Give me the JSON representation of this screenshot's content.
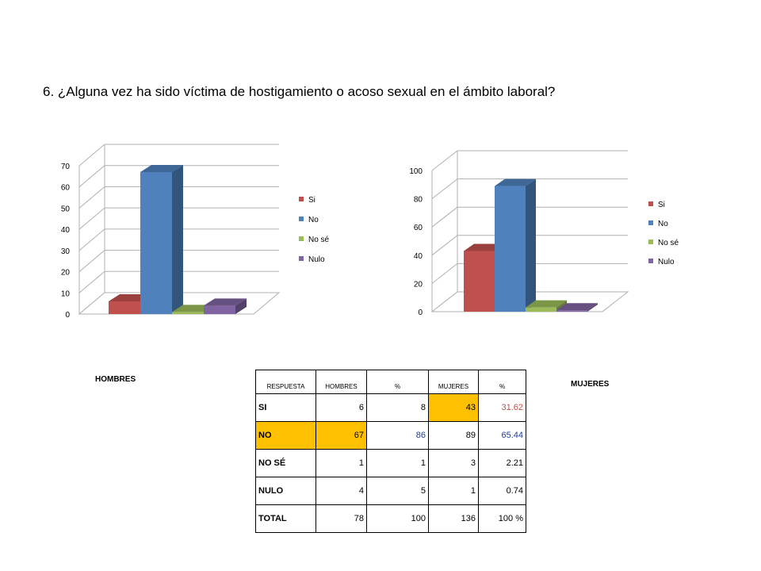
{
  "title": "6. ¿Alguna vez ha sido víctima de hostigamiento o acoso sexual en el  ámbito laboral?",
  "captions": {
    "hombres": "HOMBRES",
    "mujeres": "MUJERES"
  },
  "colors": {
    "si": "#c0504d",
    "no": "#4f81bd",
    "nose": "#9bbb59",
    "nulo": "#8064a2",
    "highlight": "#ffc000"
  },
  "chart_data": [
    {
      "type": "bar",
      "categories": [
        "Si",
        "No",
        "No sé",
        "Nulo"
      ],
      "values": [
        6,
        67,
        1,
        4
      ],
      "ylim": [
        0,
        70
      ],
      "yticks": [
        "0",
        "10",
        "20",
        "30",
        "40",
        "50",
        "60",
        "70"
      ],
      "legend": [
        "Si",
        "No",
        "No sé",
        "Nulo"
      ],
      "legend_position": "right",
      "grid": true,
      "style": "3d"
    },
    {
      "type": "bar",
      "categories": [
        "Si",
        "No",
        "No sé",
        "Nulo"
      ],
      "values": [
        43,
        89,
        3,
        1
      ],
      "ylim": [
        0,
        100
      ],
      "yticks": [
        "0",
        "20",
        "40",
        "60",
        "80",
        "100"
      ],
      "legend": [
        "Si",
        "No",
        "No sé",
        "Nulo"
      ],
      "legend_position": "right",
      "grid": true,
      "style": "3d"
    }
  ],
  "table": {
    "headers": [
      "RESPUESTA",
      "HOMBRES",
      "%",
      "MUJERES",
      "%"
    ],
    "rows": [
      [
        "SI",
        "6",
        "8",
        "43",
        "31.62"
      ],
      [
        "NO",
        "67",
        "86",
        "89",
        "65.44"
      ],
      [
        "NO SÉ",
        "1",
        "1",
        "3",
        "2.21"
      ],
      [
        "NULO",
        "4",
        "5",
        "1",
        "0.74"
      ],
      [
        "TOTAL",
        "78",
        "100",
        "136",
        "100 %"
      ]
    ]
  }
}
